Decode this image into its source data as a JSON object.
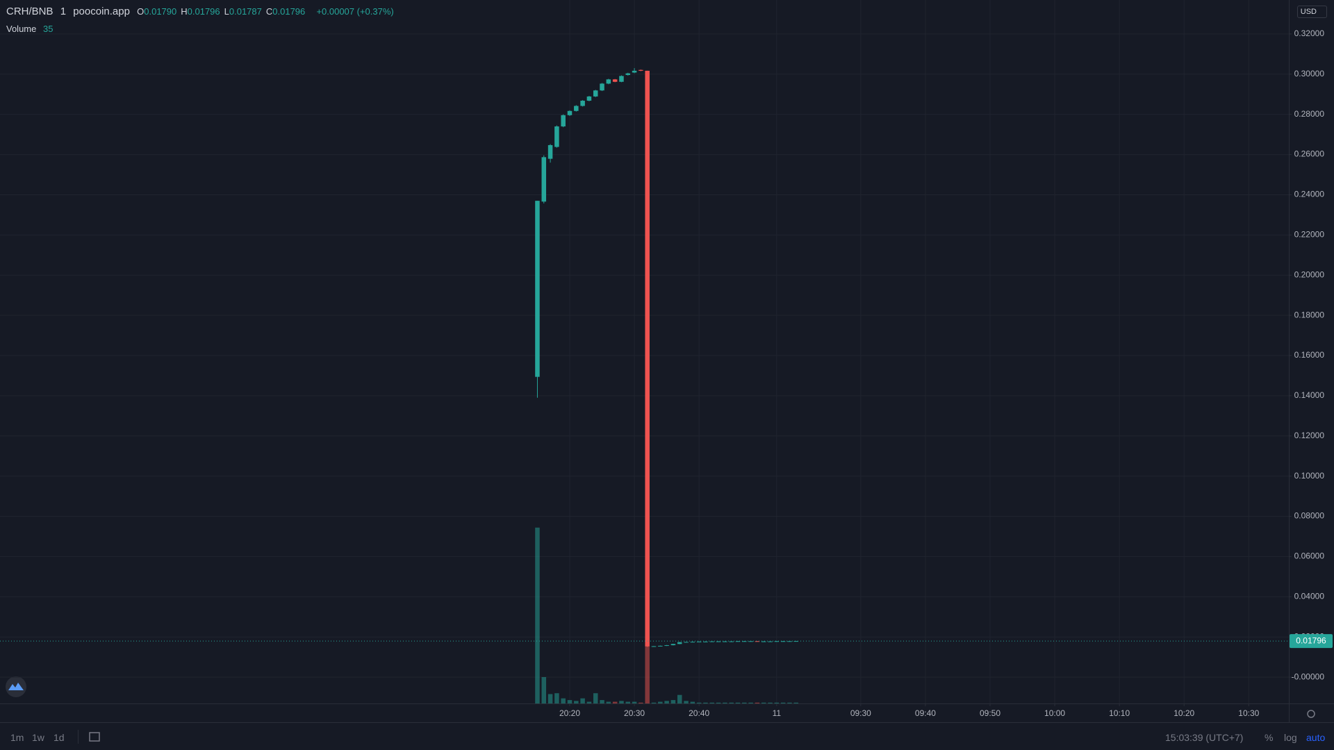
{
  "chart_data": {
    "type": "candlestick",
    "up_color": "#26a69a",
    "down_color": "#ef5350",
    "grid": true,
    "x": [
      0,
      1,
      2,
      3,
      4,
      5,
      6,
      7,
      8,
      9,
      10,
      11,
      12,
      13,
      14,
      15,
      16,
      17,
      18,
      19,
      20,
      21,
      22,
      23,
      24,
      25,
      26,
      27,
      28,
      29,
      30,
      31,
      32,
      33,
      34,
      35,
      36,
      37,
      38,
      39,
      40
    ],
    "open": [
      0.1494,
      0.2366,
      0.2579,
      0.2638,
      0.274,
      0.2796,
      0.2817,
      0.2842,
      0.2868,
      0.2889,
      0.2919,
      0.2953,
      0.2974,
      0.2962,
      0.2996,
      0.3008,
      0.3021,
      0.3017,
      0.0153,
      0.0154,
      0.0156,
      0.0159,
      0.0165,
      0.0174,
      0.0175,
      0.0176,
      0.0177,
      0.0177,
      0.0178,
      0.0178,
      0.0178,
      0.0178,
      0.0179,
      0.0179,
      0.0179,
      0.0178,
      0.0178,
      0.0178,
      0.0179,
      0.0179,
      0.0179
    ],
    "high": [
      0.237,
      0.2596,
      0.2652,
      0.2745,
      0.28,
      0.282,
      0.2846,
      0.2871,
      0.2892,
      0.2922,
      0.2956,
      0.2977,
      0.2976,
      0.2994,
      0.3007,
      0.303,
      0.3023,
      0.3017,
      0.0155,
      0.0157,
      0.016,
      0.0166,
      0.0175,
      0.0176,
      0.0177,
      0.0178,
      0.0178,
      0.0179,
      0.0179,
      0.0179,
      0.0179,
      0.018,
      0.018,
      0.018,
      0.018,
      0.0179,
      0.0179,
      0.018,
      0.018,
      0.018,
      0.01796
    ],
    "low": [
      0.139,
      0.2357,
      0.256,
      0.2634,
      0.2736,
      0.2792,
      0.2814,
      0.2839,
      0.2865,
      0.2886,
      0.2916,
      0.295,
      0.296,
      0.296,
      0.2993,
      0.3005,
      0.3015,
      0.015,
      0.0152,
      0.0153,
      0.0155,
      0.0158,
      0.0164,
      0.0173,
      0.0174,
      0.0175,
      0.0176,
      0.0176,
      0.0177,
      0.0177,
      0.0177,
      0.0177,
      0.0178,
      0.0178,
      0.0177,
      0.0177,
      0.0177,
      0.0177,
      0.0178,
      0.0178,
      0.01787
    ],
    "close": [
      0.237,
      0.2587,
      0.2647,
      0.274,
      0.2796,
      0.2817,
      0.2842,
      0.2868,
      0.2889,
      0.2919,
      0.2953,
      0.2974,
      0.2962,
      0.2991,
      0.3004,
      0.3017,
      0.3017,
      0.0153,
      0.0154,
      0.0156,
      0.0159,
      0.0165,
      0.0174,
      0.0175,
      0.0176,
      0.0177,
      0.0177,
      0.0178,
      0.0178,
      0.0178,
      0.0178,
      0.0179,
      0.0179,
      0.0179,
      0.0178,
      0.0178,
      0.0178,
      0.0179,
      0.0179,
      0.0179,
      0.01796
    ],
    "volume": [
      7200,
      1080,
      385,
      420,
      210,
      140,
      105,
      210,
      70,
      420,
      140,
      70,
      70,
      105,
      70,
      70,
      35,
      2380,
      35,
      70,
      105,
      140,
      350,
      105,
      70,
      35,
      35,
      35,
      35,
      35,
      35,
      35,
      35,
      35,
      35,
      35,
      35,
      35,
      35,
      35,
      35
    ],
    "xlim": [
      -83.1,
      116.2
    ],
    "xticks": [
      {
        "value": 5,
        "label": "20:20"
      },
      {
        "value": 15,
        "label": "20:30"
      },
      {
        "value": 25,
        "label": "20:40"
      },
      {
        "value": 37,
        "label": "11"
      },
      {
        "value": 50,
        "label": "09:30"
      },
      {
        "value": 60,
        "label": "09:40"
      },
      {
        "value": 70,
        "label": "09:50"
      },
      {
        "value": 80,
        "label": "10:00"
      },
      {
        "value": 90,
        "label": "10:10"
      },
      {
        "value": 100,
        "label": "10:20"
      },
      {
        "value": 110,
        "label": "10:30"
      }
    ],
    "ylim": [
      -0.0131,
      0.3369
    ],
    "yticks": [
      {
        "value": 0,
        "label": "-0.00000"
      },
      {
        "value": 0.02,
        "label": "0.02000"
      },
      {
        "value": 0.04,
        "label": "0.04000"
      },
      {
        "value": 0.06,
        "label": "0.06000"
      },
      {
        "value": 0.08,
        "label": "0.08000"
      },
      {
        "value": 0.1,
        "label": "0.10000"
      },
      {
        "value": 0.12,
        "label": "0.12000"
      },
      {
        "value": 0.14,
        "label": "0.14000"
      },
      {
        "value": 0.16,
        "label": "0.16000"
      },
      {
        "value": 0.18,
        "label": "0.18000"
      },
      {
        "value": 0.2,
        "label": "0.20000"
      },
      {
        "value": 0.22,
        "label": "0.22000"
      },
      {
        "value": 0.24,
        "label": "0.24000"
      },
      {
        "value": 0.26,
        "label": "0.26000"
      },
      {
        "value": 0.28,
        "label": "0.28000"
      },
      {
        "value": 0.3,
        "label": "0.30000"
      },
      {
        "value": 0.32,
        "label": "0.32000"
      }
    ],
    "last_price_label": "0.01796"
  },
  "ui": {
    "symbol": "CRH/BNB",
    "interval": "1",
    "source": "poocoin.app",
    "ohlc_legend": [
      {
        "key": "O",
        "text": "0.01790"
      },
      {
        "key": "H",
        "text": "0.01796"
      },
      {
        "key": "L",
        "text": "0.01787"
      },
      {
        "key": "C",
        "text": "0.01796"
      }
    ],
    "change": "+0.00007 (+0.37%)",
    "volume_title": "Volume",
    "currency": "USD",
    "timeframes": [
      "1m",
      "1w",
      "1d"
    ],
    "clock": "15:03:39 (UTC+7)",
    "toggles": [
      "%",
      "log",
      "auto"
    ]
  }
}
